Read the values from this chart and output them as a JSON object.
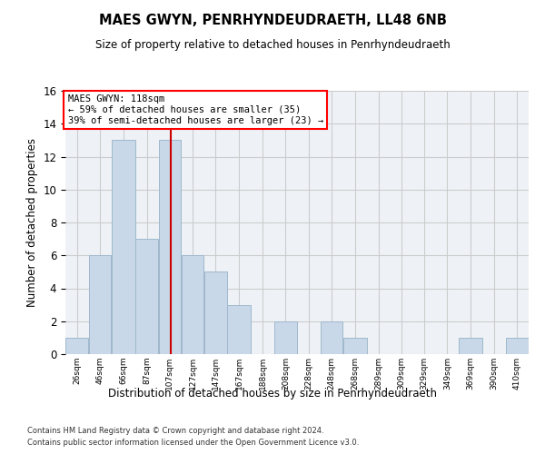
{
  "title1": "MAES GWYN, PENRHYNDEUDRAETH, LL48 6NB",
  "title2": "Size of property relative to detached houses in Penrhyndeudraeth",
  "xlabel": "Distribution of detached houses by size in Penrhyndeudraeth",
  "ylabel": "Number of detached properties",
  "annotation_line1": "MAES GWYN: 118sqm",
  "annotation_line2": "← 59% of detached houses are smaller (35)",
  "annotation_line3": "39% of semi-detached houses are larger (23) →",
  "vline_x": 118,
  "bar_color": "#c8d8e8",
  "bar_edgecolor": "#a0b8cc",
  "vline_color": "#cc0000",
  "grid_color": "#cccccc",
  "background_color": "#eef2f7",
  "footer1": "Contains HM Land Registry data © Crown copyright and database right 2024.",
  "footer2": "Contains public sector information licensed under the Open Government Licence v3.0.",
  "bins": [
    26,
    46,
    66,
    87,
    107,
    127,
    147,
    167,
    188,
    208,
    228,
    248,
    268,
    289,
    309,
    329,
    349,
    369,
    390,
    410,
    430
  ],
  "heights": [
    1,
    6,
    13,
    7,
    13,
    6,
    5,
    3,
    0,
    2,
    0,
    2,
    1,
    0,
    0,
    0,
    0,
    1,
    0,
    1
  ],
  "ylim": [
    0,
    16
  ],
  "yticks": [
    0,
    2,
    4,
    6,
    8,
    10,
    12,
    14,
    16
  ]
}
